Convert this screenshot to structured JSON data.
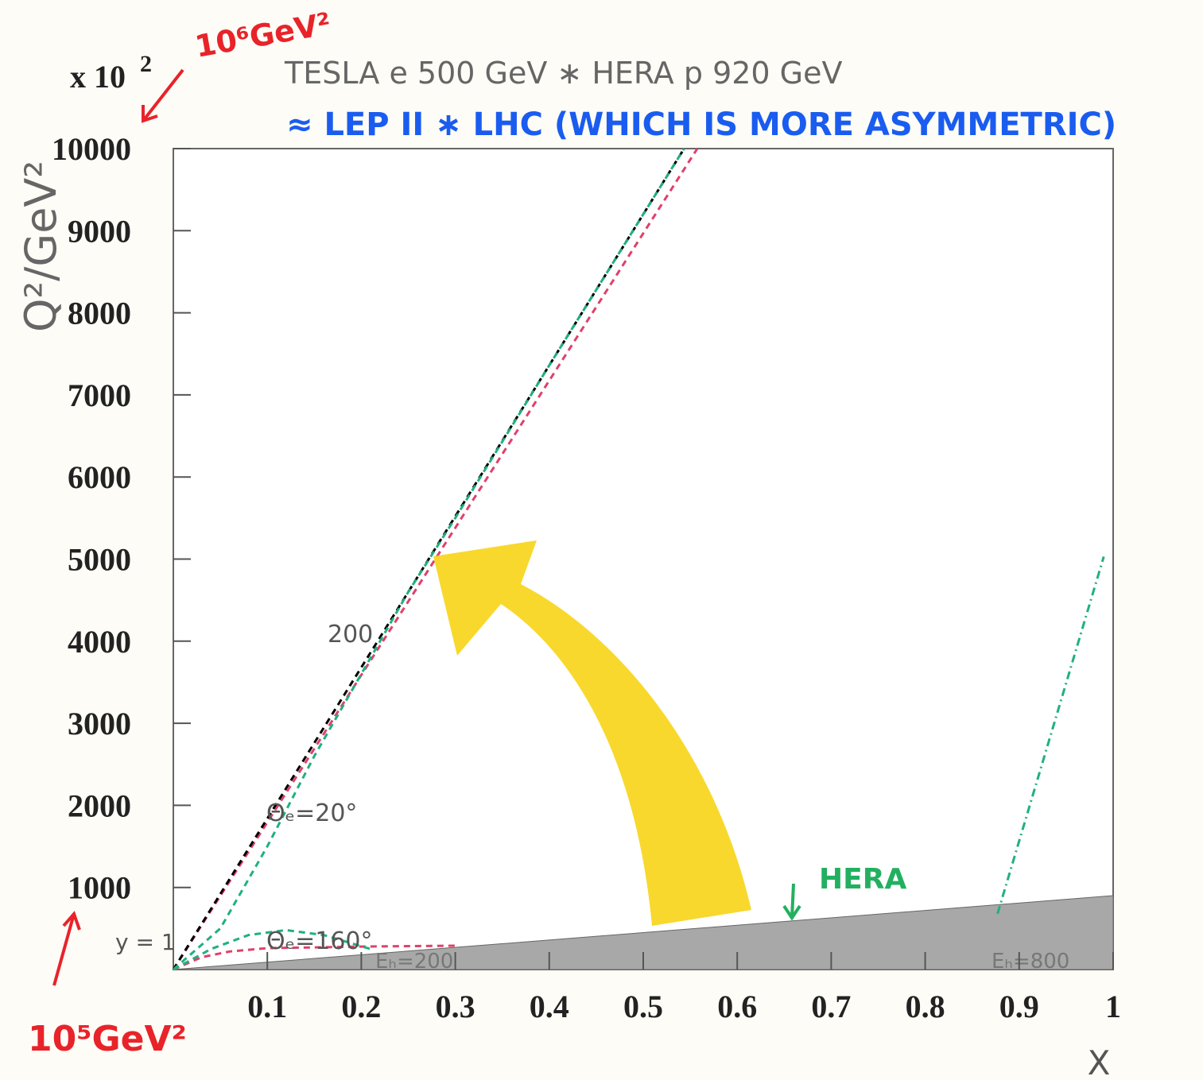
{
  "chart_data": {
    "type": "line",
    "title": "TESLA e 500 GeV ∗ HERA p 920 GeV",
    "subtitle": "≈ LEP II ∗ LHC   (WHICH IS MORE ASYMMETRIC)",
    "x_label": "X",
    "y_label": "Q²/GeV²",
    "y_multiplier": {
      "base": "x 10",
      "exponent": "2"
    },
    "xlim": [
      0,
      1
    ],
    "ylim": [
      0,
      10000
    ],
    "xticks": [
      0.1,
      0.2,
      0.3,
      0.4,
      0.5,
      0.6,
      0.7,
      0.8,
      0.9,
      1
    ],
    "yticks": [
      1000,
      2000,
      3000,
      4000,
      5000,
      6000,
      7000,
      8000,
      9000,
      10000
    ],
    "annotations": {
      "kinematic_limit": "y = 1",
      "energy_200": "200",
      "theta_20": "Θₑ=20°",
      "theta_160": "Θₑ=160°",
      "eh_200": "Eₕ=200",
      "eh_800": "Eₕ=800",
      "hera": "HERA",
      "top_scale": "10⁶GeV²",
      "bottom_scale": "10⁵GeV²"
    },
    "series": [
      {
        "color": "#a8a8a8",
        "fill": true,
        "dash": "none",
        "x": [
          0,
          1,
          1
        ],
        "values": [
          0,
          900,
          0
        ]
      },
      {
        "color": "#e0406a",
        "dash": "8 6",
        "x": [
          0,
          0.5575
        ],
        "values": [
          0,
          10000
        ]
      },
      {
        "color": "#000000",
        "dash": "8 6",
        "x": [
          0,
          0.5435
        ],
        "values": [
          0,
          10000
        ]
      },
      {
        "color": "#20b080",
        "dash": "8 6",
        "x": [
          0,
          0.05,
          0.1,
          0.15,
          0.2,
          0.25,
          0.3,
          0.4,
          0.5,
          0.5435
        ],
        "values": [
          0,
          500,
          1500,
          2600,
          3600,
          4600,
          5500,
          7360,
          9200,
          10000
        ]
      },
      {
        "color": "#e0406a",
        "dash": "8 6",
        "x": [
          0,
          0.03,
          0.06,
          0.1,
          0.2,
          0.3
        ],
        "values": [
          0,
          150,
          220,
          260,
          280,
          290
        ]
      },
      {
        "color": "#20b080",
        "dash": "8 6",
        "x": [
          0,
          0.04,
          0.08,
          0.12,
          0.16,
          0.21
        ],
        "values": [
          0,
          250,
          420,
          480,
          420,
          250
        ]
      },
      {
        "color": "#20b080",
        "dash": "10 5 2 5",
        "x": [
          0.877,
          0.99
        ],
        "values": [
          680,
          5030
        ]
      }
    ]
  }
}
